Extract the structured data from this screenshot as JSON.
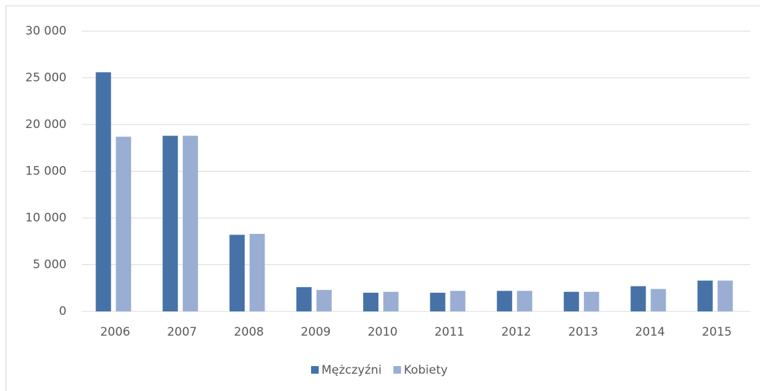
{
  "chart_data": {
    "type": "bar",
    "categories": [
      "2006",
      "2007",
      "2008",
      "2009",
      "2010",
      "2011",
      "2012",
      "2013",
      "2014",
      "2015"
    ],
    "series": [
      {
        "name": "Mężczyźni",
        "color": "#4672a8",
        "values": [
          25600,
          18800,
          8200,
          2600,
          2000,
          2000,
          2200,
          2100,
          2700,
          3300
        ]
      },
      {
        "name": "Kobiety",
        "color": "#9aaed4",
        "values": [
          18700,
          18800,
          8300,
          2300,
          2100,
          2200,
          2200,
          2100,
          2400,
          3300
        ]
      }
    ],
    "ylim": [
      0,
      30000
    ],
    "yticks": [
      0,
      {
        "value": 5000,
        "label": "5 000"
      },
      {
        "value": 10000,
        "label": "10 000"
      },
      {
        "value": 15000,
        "label": "15 000"
      },
      {
        "value": 20000,
        "label": "20 000"
      },
      {
        "value": 25000,
        "label": "25 000"
      },
      {
        "value": 30000,
        "label": "30 000"
      }
    ],
    "grid": true,
    "legend": "bottom"
  }
}
